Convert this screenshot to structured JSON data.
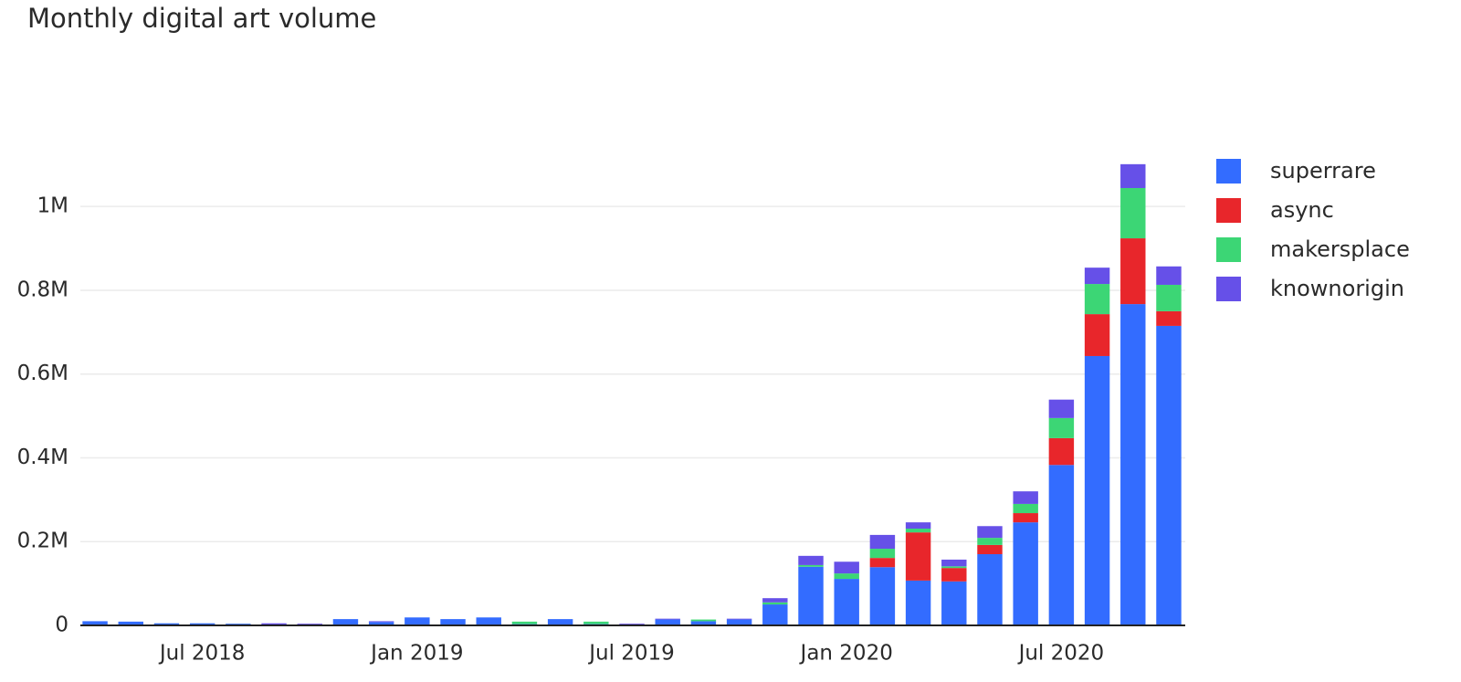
{
  "chart_data": {
    "type": "stacked-bar",
    "title": "Monthly digital art volume",
    "x": [
      "2018-04",
      "2018-05",
      "2018-06",
      "2018-07",
      "2018-08",
      "2018-09",
      "2018-10",
      "2018-11",
      "2018-12",
      "2019-01",
      "2019-02",
      "2019-03",
      "2019-04",
      "2019-05",
      "2019-06",
      "2019-07",
      "2019-08",
      "2019-09",
      "2019-10",
      "2019-11",
      "2019-12",
      "2020-01",
      "2020-02",
      "2020-03",
      "2020-04",
      "2020-05",
      "2020-06",
      "2020-07",
      "2020-08",
      "2020-09",
      "2020-10"
    ],
    "series": [
      {
        "name": "superrare",
        "color": "#336cff",
        "values": [
          10000,
          9000,
          5000,
          5000,
          4000,
          1000,
          0,
          15000,
          8000,
          19000,
          15000,
          19000,
          3000,
          15000,
          3000,
          0,
          14000,
          10000,
          14000,
          50000,
          140000,
          111000,
          139000,
          107000,
          105000,
          170000,
          246000,
          383000,
          643000,
          767000,
          715000
        ]
      },
      {
        "name": "async",
        "color": "#e8262b",
        "values": [
          0,
          0,
          0,
          0,
          0,
          0,
          0,
          0,
          0,
          0,
          0,
          0,
          0,
          0,
          0,
          0,
          0,
          0,
          0,
          0,
          0,
          0,
          22000,
          115000,
          32000,
          22000,
          22000,
          64000,
          100000,
          157000,
          35000
        ]
      },
      {
        "name": "makersplace",
        "color": "#3cd675",
        "values": [
          0,
          0,
          0,
          0,
          0,
          0,
          0,
          0,
          0,
          0,
          0,
          0,
          6000,
          0,
          6000,
          0,
          0,
          4000,
          0,
          5000,
          4000,
          13000,
          22000,
          9000,
          4000,
          17000,
          22000,
          48000,
          72000,
          120000,
          63000
        ]
      },
      {
        "name": "knownorigin",
        "color": "#6650e8",
        "values": [
          0,
          0,
          0,
          0,
          0,
          4000,
          4000,
          0,
          2000,
          0,
          0,
          0,
          0,
          0,
          0,
          4000,
          2000,
          0,
          2000,
          10000,
          22000,
          28000,
          33000,
          15000,
          16000,
          28000,
          30000,
          44000,
          39000,
          57000,
          44000
        ]
      }
    ],
    "ylim": [
      0,
      1190000
    ],
    "yticks": [
      0,
      {
        "value": 200000,
        "label": "0.2M"
      },
      {
        "value": 400000,
        "label": "0.4M"
      },
      {
        "value": 600000,
        "label": "0.6M"
      },
      {
        "value": 800000,
        "label": "0.8M"
      },
      {
        "value": 1000000,
        "label": "1M"
      }
    ],
    "xticks": [
      {
        "value": "2018-07",
        "label": "Jul 2018"
      },
      {
        "value": "2019-01",
        "label": "Jan 2019"
      },
      {
        "value": "2019-07",
        "label": "Jul 2019"
      },
      {
        "value": "2020-01",
        "label": "Jan 2020"
      },
      {
        "value": "2020-07",
        "label": "Jul 2020"
      }
    ],
    "grid": true,
    "legend": "right"
  }
}
